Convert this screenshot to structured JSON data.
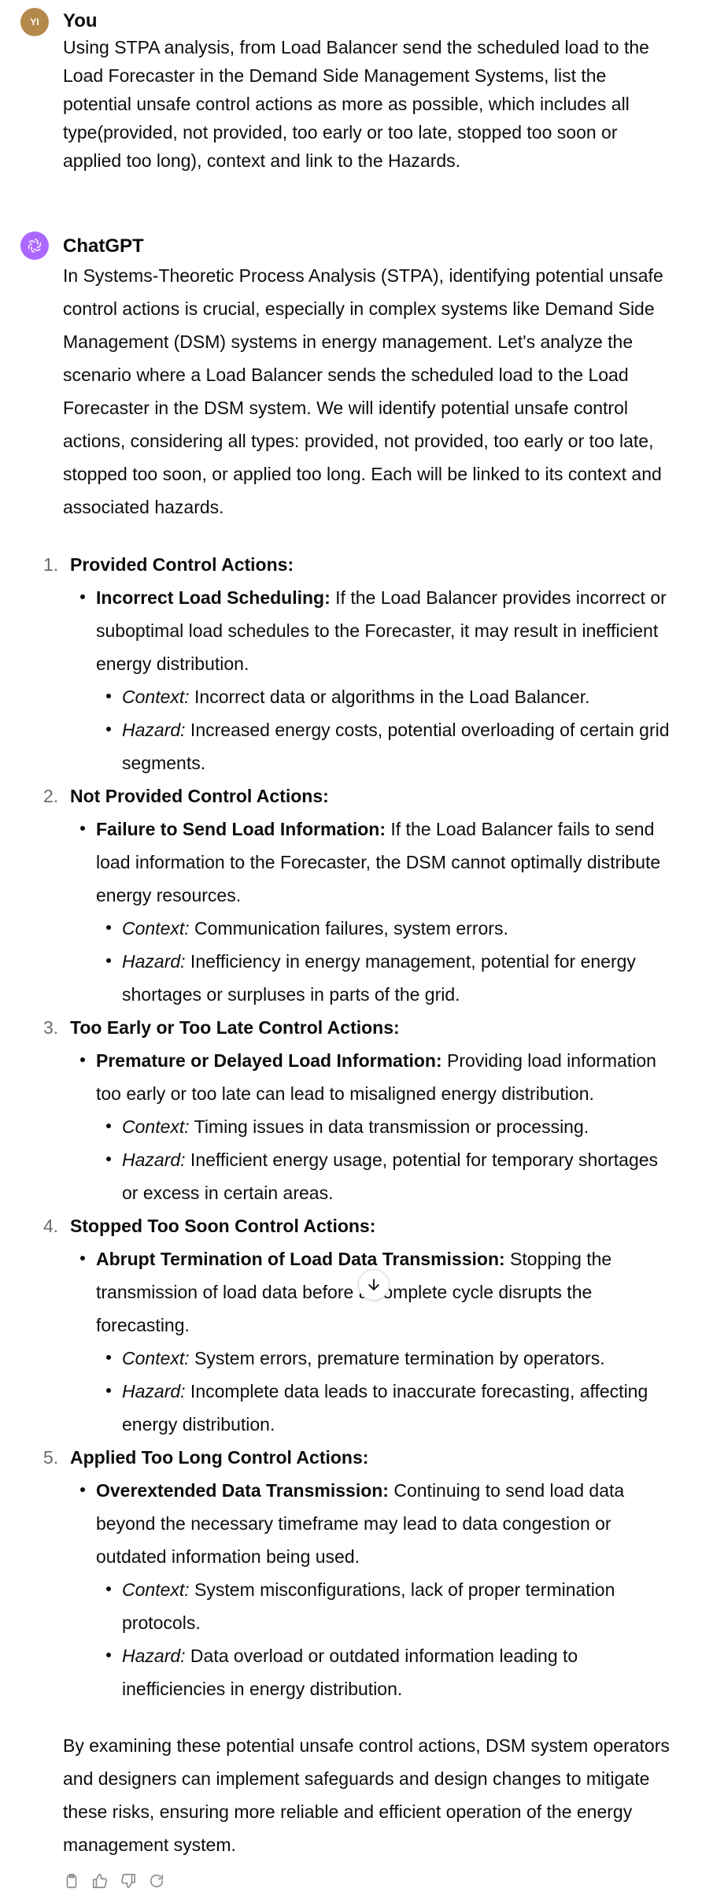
{
  "user": {
    "author": "You",
    "initials": "YI",
    "message": "Using STPA analysis, from Load Balancer send the scheduled load to the Load Forecaster in the Demand Side Management Systems, list the potential unsafe control actions as more as possible, which includes all type(provided, not provided, too early or too late, stopped too soon or applied too long), context and link to the Hazards."
  },
  "assistant": {
    "author": "ChatGPT",
    "intro": "In Systems-Theoretic Process Analysis (STPA), identifying potential unsafe control actions is crucial, especially in complex systems like Demand Side Management (DSM) systems in energy management. Let's analyze the scenario where a Load Balancer sends the scheduled load to the Load Forecaster in the DSM system. We will identify potential unsafe control actions, considering all types: provided, not provided, too early or too late, stopped too soon, or applied too long. Each will be linked to its context and associated hazards.",
    "context_label": "Context:",
    "hazard_label": "Hazard:",
    "sections": [
      {
        "num": "1.",
        "title": "Provided Control Actions:",
        "item_title": "Incorrect Load Scheduling:",
        "item_text": " If the Load Balancer provides incorrect or suboptimal load schedules to the Forecaster, it may result in inefficient energy distribution.",
        "context": " Incorrect data or algorithms in the Load Balancer.",
        "hazard": " Increased energy costs, potential overloading of certain grid segments."
      },
      {
        "num": "2.",
        "title": "Not Provided Control Actions:",
        "item_title": "Failure to Send Load Information:",
        "item_text": " If the Load Balancer fails to send load information to the Forecaster, the DSM cannot optimally distribute energy resources.",
        "context": " Communication failures, system errors.",
        "hazard": " Inefficiency in energy management, potential for energy shortages or surpluses in parts of the grid."
      },
      {
        "num": "3.",
        "title": "Too Early or Too Late Control Actions:",
        "item_title": "Premature or Delayed Load Information:",
        "item_text": " Providing load information too early or too late can lead to misaligned energy distribution.",
        "context": " Timing issues in data transmission or processing.",
        "hazard": " Inefficient energy usage, potential for temporary shortages or excess in certain areas."
      },
      {
        "num": "4.",
        "title": "Stopped Too Soon Control Actions:",
        "item_title": "Abrupt Termination of Load Data Transmission:",
        "item_text": " Stopping the transmission of load data before a complete cycle disrupts the forecasting.",
        "context": " System errors, premature termination by operators.",
        "hazard": " Incomplete data leads to inaccurate forecasting, affecting energy distribution."
      },
      {
        "num": "5.",
        "title": "Applied Too Long Control Actions:",
        "item_title": "Overextended Data Transmission:",
        "item_text": " Continuing to send load data beyond the necessary timeframe may lead to data congestion or outdated information being used.",
        "context": " System misconfigurations, lack of proper termination protocols.",
        "hazard": " Data overload or outdated information leading to inefficiencies in energy distribution."
      }
    ],
    "conclusion": "By examining these potential unsafe control actions, DSM system operators and designers can implement safeguards and design changes to mitigate these risks, ensuring more reliable and efficient operation of the energy management system."
  },
  "icons": {
    "copy": "copy-icon",
    "thumbs_up": "thumbs-up-icon",
    "thumbs_down": "thumbs-down-icon",
    "regenerate": "regenerate-icon",
    "scroll_down": "arrow-down-icon"
  }
}
